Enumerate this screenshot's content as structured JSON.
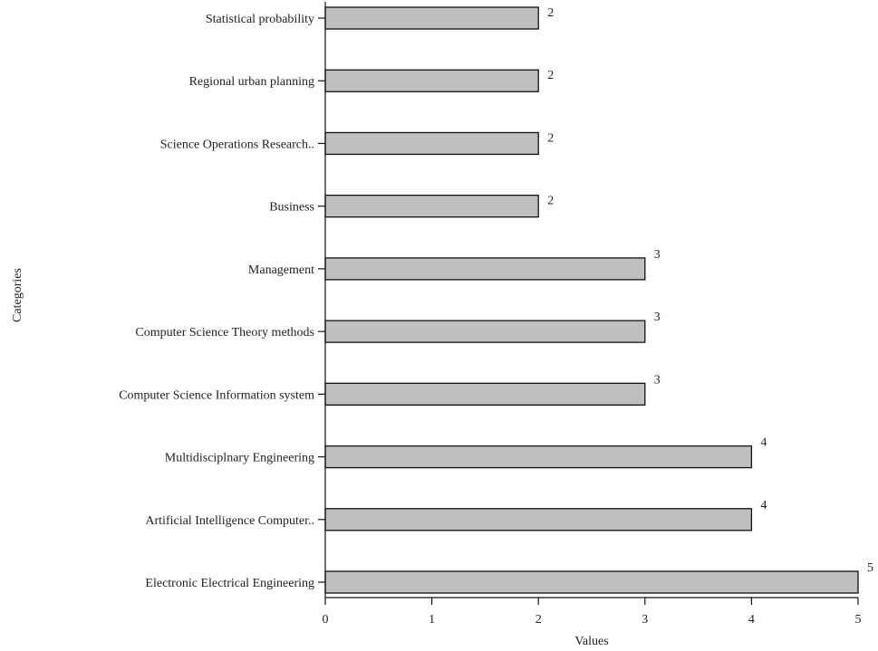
{
  "chart_data": {
    "type": "bar",
    "orientation": "horizontal",
    "categories": [
      "Statistical probability",
      "Regional urban planning",
      "Science Operations Research..",
      "Business",
      "Management",
      "Computer Science Theory methods",
      "Computer Science Information system",
      "Multidisciplnary Engineering",
      "Artificial Intelligence Computer..",
      "Electronic Electrical Engineering"
    ],
    "values": [
      2,
      2,
      2,
      2,
      3,
      3,
      3,
      4,
      4,
      5
    ],
    "xlabel": "Values",
    "ylabel": "Categories",
    "xlim": [
      0,
      5
    ],
    "xticks": [
      0,
      1,
      2,
      3,
      4,
      5
    ],
    "grid": false,
    "data_labels": true,
    "bar_color": "#bfbfbf",
    "bar_edge_color": "#111111"
  }
}
